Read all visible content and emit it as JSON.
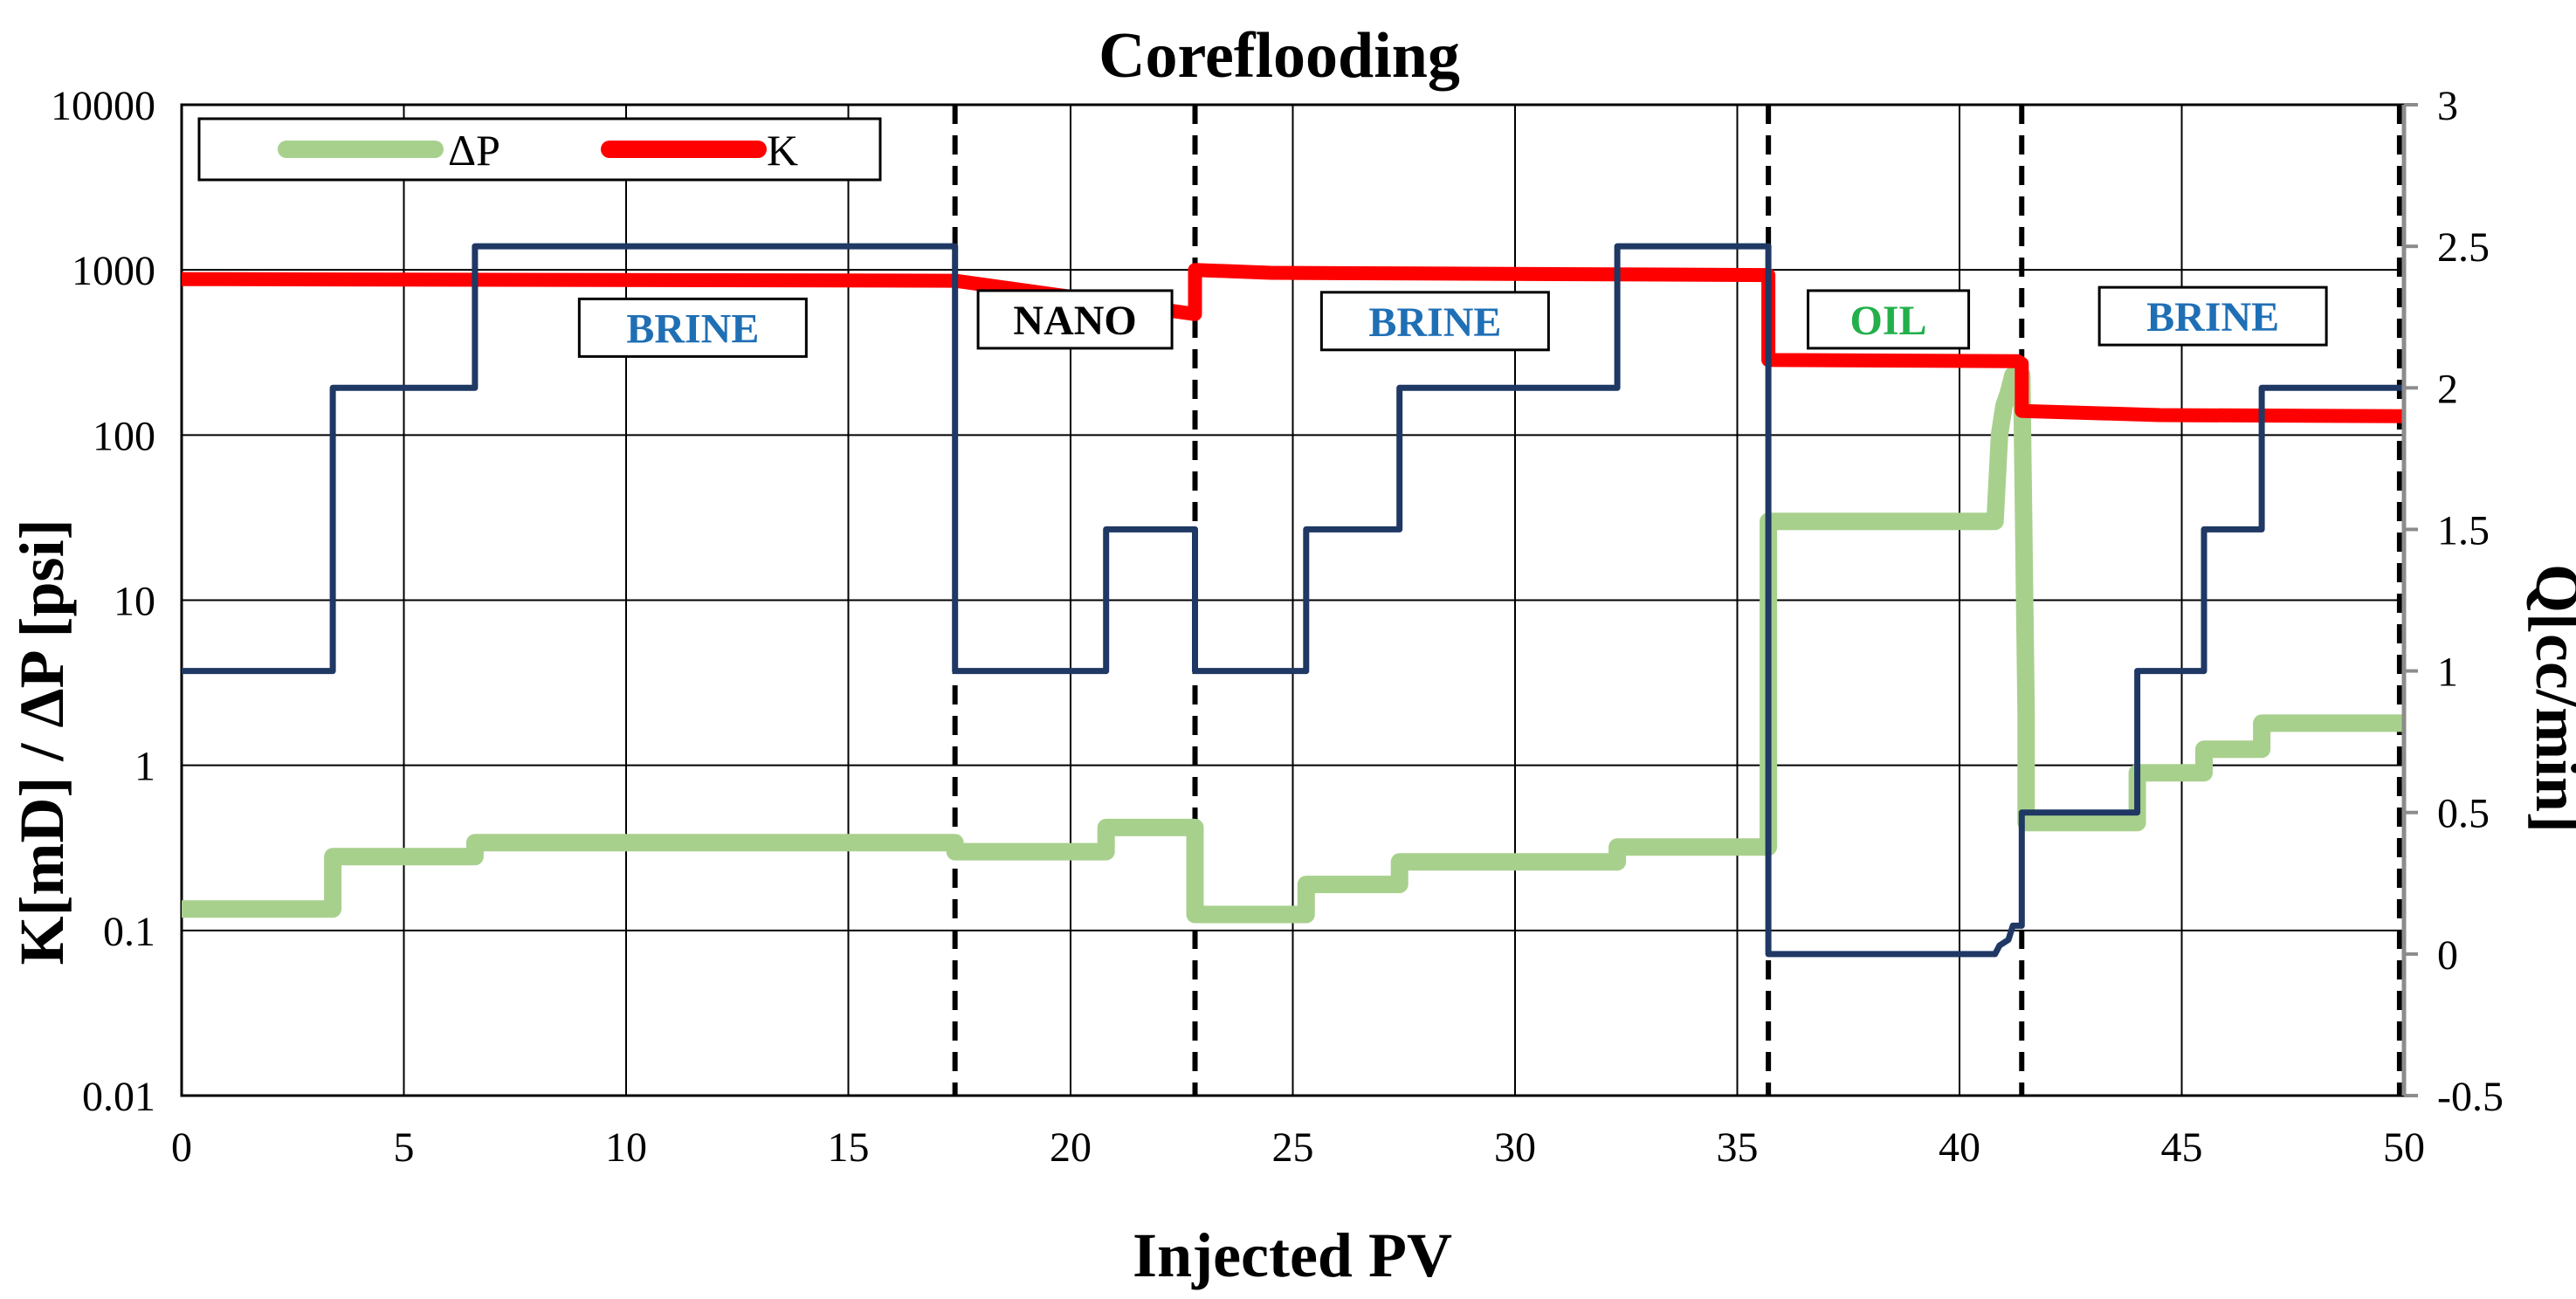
{
  "chart_data": {
    "type": "line",
    "title": "Coreflooding",
    "xlabel": "Injected PV",
    "ylabel_left": "K[mD] / ΔP [psi]",
    "ylabel_right": "Q[cc/min]",
    "xlim": [
      0,
      50
    ],
    "ylim_left": [
      0.01,
      10000
    ],
    "ylim_right": [
      -0.5,
      3
    ],
    "left_axis_scale": "log",
    "x_ticks": [
      0,
      5,
      10,
      15,
      20,
      25,
      30,
      35,
      40,
      45,
      50
    ],
    "x_tick_labels": [
      "0",
      "5",
      "10",
      "15",
      "20",
      "25",
      "30",
      "35",
      "40",
      "45",
      "50"
    ],
    "left_ticks": [
      0.01,
      0.1,
      1,
      10,
      100,
      1000,
      10000
    ],
    "left_tick_labels": [
      "0.01",
      "0.1",
      "1",
      "10",
      "100",
      "1000",
      "10000"
    ],
    "right_ticks": [
      -0.5,
      0,
      0.5,
      1,
      1.5,
      2,
      2.5,
      3
    ],
    "right_tick_labels": [
      "-0.5",
      "0",
      "0.5",
      "1",
      "1.5",
      "2",
      "2.5",
      "3"
    ],
    "grid": true,
    "legend": {
      "position": "top-left",
      "entries": [
        {
          "label": "ΔP",
          "color": "#a8d08d"
        },
        {
          "label": "K",
          "color": "#ff0000"
        }
      ]
    },
    "phase_boundaries_pv": [
      17.4,
      22.8,
      35.7,
      41.4,
      49.9
    ],
    "region_labels": [
      {
        "text": "BRINE",
        "x": 11.5,
        "y_log10": 2.65,
        "color": "#1f6fb5"
      },
      {
        "text": "NANO",
        "x": 20.1,
        "y_log10": 2.7,
        "color": "#000000"
      },
      {
        "text": "BRINE",
        "x": 28.2,
        "y_log10": 2.69,
        "color": "#1f6fb5"
      },
      {
        "text": "OIL",
        "x": 38.4,
        "y_log10": 2.7,
        "color": "#22b04b"
      },
      {
        "text": "BRINE",
        "x": 45.7,
        "y_log10": 2.72,
        "color": "#1f6fb5"
      }
    ],
    "series": [
      {
        "name": "ΔP",
        "axis": "left",
        "color": "#a8d08d",
        "x": [
          0,
          3.4,
          3.4,
          6.6,
          6.6,
          17.4,
          17.4,
          20.8,
          20.8,
          22.8,
          22.8,
          25.3,
          25.3,
          27.4,
          27.4,
          32.3,
          32.3,
          35.7,
          35.7,
          36.0,
          36.0,
          40.8,
          40.9,
          41.0,
          41.1,
          41.2,
          41.4,
          41.5,
          41.5,
          44.0,
          44.0,
          45.5,
          45.5,
          46.8,
          46.8,
          50
        ],
        "y": [
          0.135,
          0.135,
          0.28,
          0.28,
          0.34,
          0.34,
          0.3,
          0.3,
          0.42,
          0.42,
          0.125,
          0.125,
          0.19,
          0.19,
          0.26,
          0.26,
          0.32,
          0.32,
          30,
          30,
          30,
          30,
          100,
          150,
          180,
          230,
          230,
          2,
          0.45,
          0.45,
          0.9,
          0.9,
          1.25,
          1.25,
          1.8,
          1.8
        ]
      },
      {
        "name": "K",
        "axis": "left",
        "color": "#ff0000",
        "x": [
          0,
          17.4,
          22.8,
          22.8,
          24.5,
          35.7,
          35.7,
          41.3,
          41.4,
          41.4,
          44.5,
          50
        ],
        "y": [
          880,
          860,
          540,
          1000,
          960,
          930,
          285,
          280,
          270,
          140,
          132,
          130
        ]
      },
      {
        "name": "Q",
        "axis": "right",
        "color": "#1f3864",
        "x": [
          0,
          3.4,
          3.4,
          6.6,
          6.6,
          17.4,
          17.4,
          20.8,
          20.8,
          22.8,
          22.8,
          25.3,
          25.3,
          27.4,
          27.4,
          32.3,
          32.3,
          35.7,
          35.7,
          40.8,
          40.9,
          41.1,
          41.2,
          41.4,
          41.4,
          44.0,
          44.0,
          45.5,
          45.5,
          46.8,
          46.8,
          50
        ],
        "y": [
          1.0,
          1.0,
          2.0,
          2.0,
          2.5,
          2.5,
          1.0,
          1.0,
          1.5,
          1.5,
          1.0,
          1.0,
          1.5,
          1.5,
          2.0,
          2.0,
          2.5,
          2.5,
          0.0,
          0.0,
          0.03,
          0.05,
          0.1,
          0.1,
          0.5,
          0.5,
          1.0,
          1.0,
          1.5,
          1.5,
          2.0,
          2.0
        ]
      }
    ]
  }
}
